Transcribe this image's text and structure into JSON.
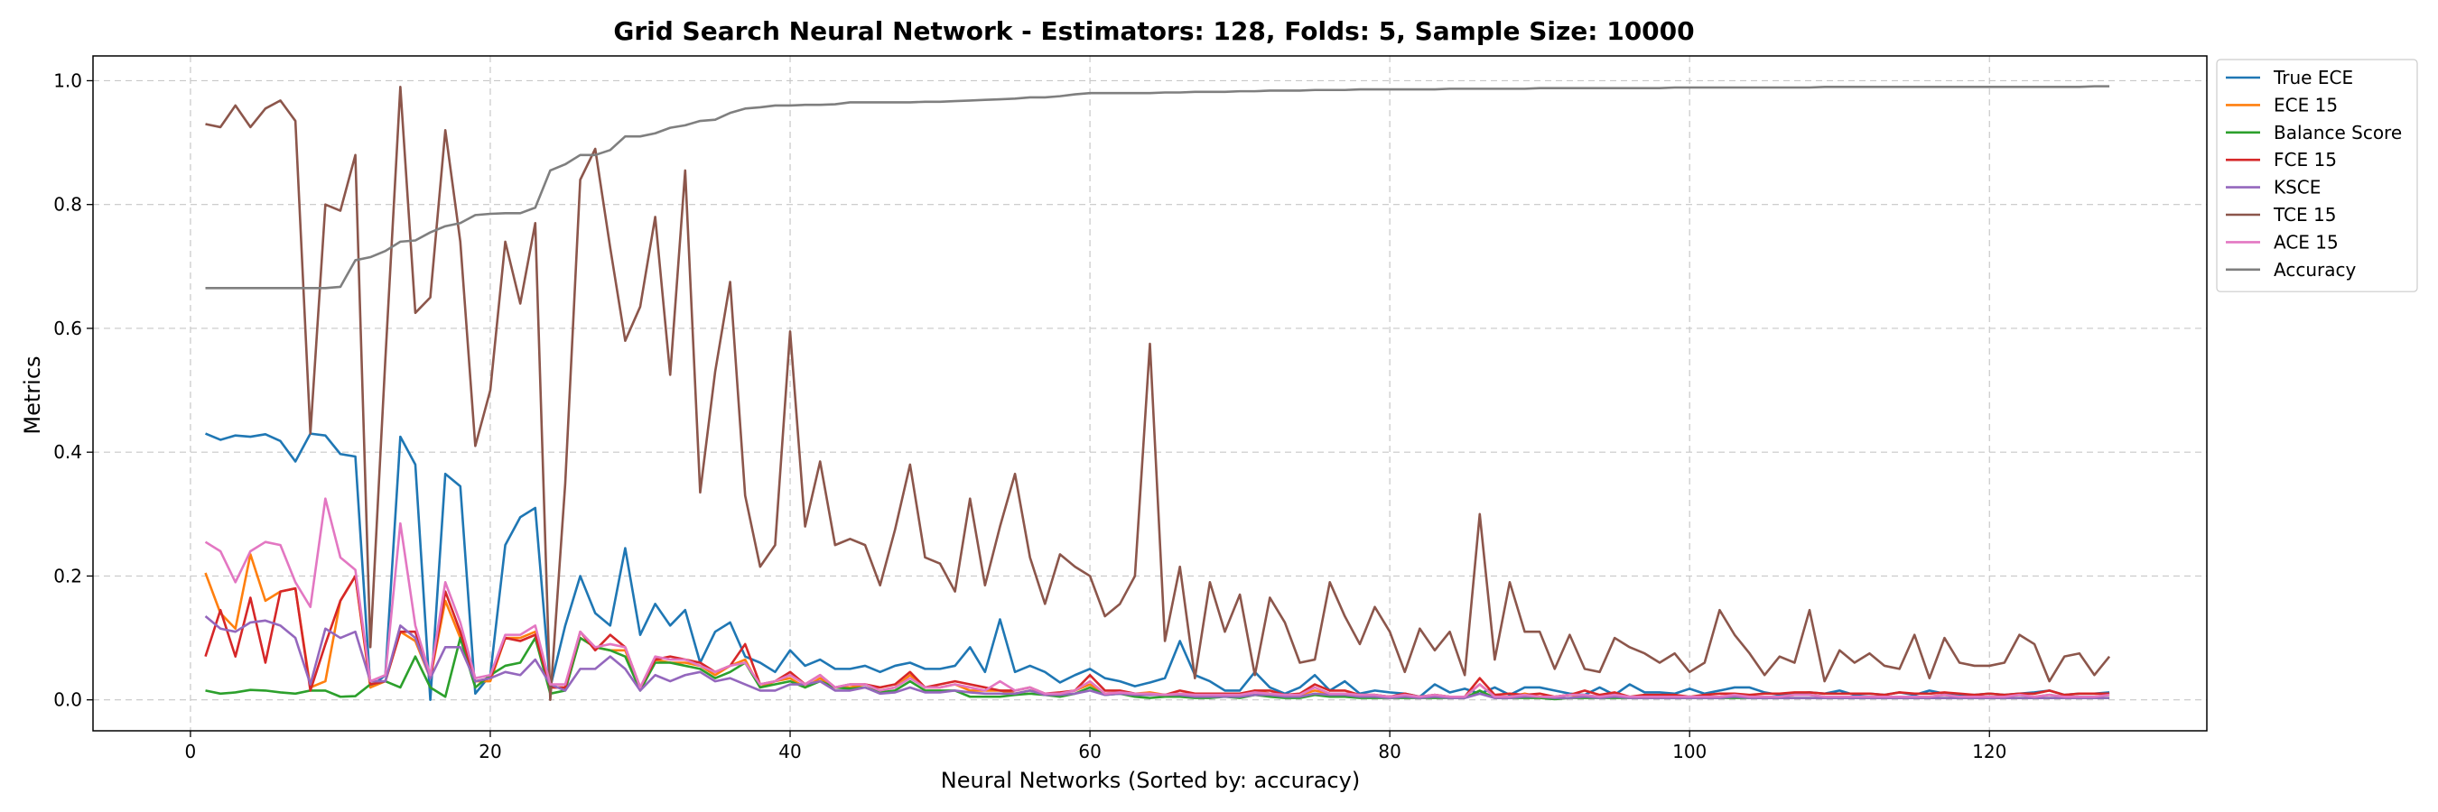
{
  "chart_data": {
    "type": "line",
    "title": "Grid Search Neural Network - Estimators: 128, Folds: 5, Sample Size: 10000",
    "xlabel": "Neural Networks (Sorted by: accuracy)",
    "ylabel": "Metrics",
    "xlim": [
      -6.5,
      134.5
    ],
    "ylim": [
      -0.05,
      1.04
    ],
    "xticks": [
      0,
      20,
      40,
      60,
      80,
      100,
      120
    ],
    "yticks": [
      0.0,
      0.2,
      0.4,
      0.6,
      0.8,
      1.0
    ],
    "xtick_labels": [
      "0",
      "20",
      "40",
      "60",
      "80",
      "100",
      "120"
    ],
    "ytick_labels": [
      "0.0",
      "0.2",
      "0.4",
      "0.6",
      "0.8",
      "1.0"
    ],
    "grid": true,
    "legend_position": "outside-top-right",
    "x": [
      1,
      2,
      3,
      4,
      5,
      6,
      7,
      8,
      9,
      10,
      11,
      12,
      13,
      14,
      15,
      16,
      17,
      18,
      19,
      20,
      21,
      22,
      23,
      24,
      25,
      26,
      27,
      28,
      29,
      30,
      31,
      32,
      33,
      34,
      35,
      36,
      37,
      38,
      39,
      40,
      41,
      42,
      43,
      44,
      45,
      46,
      47,
      48,
      49,
      50,
      51,
      52,
      53,
      54,
      55,
      56,
      57,
      58,
      59,
      60,
      61,
      62,
      63,
      64,
      65,
      66,
      67,
      68,
      69,
      70,
      71,
      72,
      73,
      74,
      75,
      76,
      77,
      78,
      79,
      80,
      81,
      82,
      83,
      84,
      85,
      86,
      87,
      88,
      89,
      90,
      91,
      92,
      93,
      94,
      95,
      96,
      97,
      98,
      99,
      100,
      101,
      102,
      103,
      104,
      105,
      106,
      107,
      108,
      109,
      110,
      111,
      112,
      113,
      114,
      115,
      116,
      117,
      118,
      119,
      120,
      121,
      122,
      123,
      124,
      125,
      126,
      127,
      128
    ],
    "series": [
      {
        "name": "True ECE",
        "color": "#1f77b4",
        "values": [
          0.43,
          0.42,
          0.427,
          0.425,
          0.429,
          0.418,
          0.385,
          0.43,
          0.427,
          0.397,
          0.393,
          0.02,
          0.04,
          0.425,
          0.38,
          0.0,
          0.365,
          0.345,
          0.01,
          0.04,
          0.25,
          0.295,
          0.31,
          0.02,
          0.12,
          0.2,
          0.14,
          0.12,
          0.245,
          0.105,
          0.155,
          0.12,
          0.145,
          0.06,
          0.11,
          0.125,
          0.07,
          0.06,
          0.045,
          0.08,
          0.055,
          0.065,
          0.05,
          0.05,
          0.055,
          0.045,
          0.055,
          0.06,
          0.05,
          0.05,
          0.055,
          0.085,
          0.045,
          0.13,
          0.045,
          0.055,
          0.045,
          0.028,
          0.04,
          0.05,
          0.035,
          0.03,
          0.022,
          0.028,
          0.035,
          0.095,
          0.04,
          0.03,
          0.015,
          0.015,
          0.045,
          0.02,
          0.01,
          0.02,
          0.04,
          0.015,
          0.03,
          0.01,
          0.015,
          0.012,
          0.01,
          0.005,
          0.025,
          0.012,
          0.018,
          0.01,
          0.02,
          0.008,
          0.02,
          0.02,
          0.015,
          0.01,
          0.008,
          0.02,
          0.008,
          0.025,
          0.012,
          0.012,
          0.01,
          0.018,
          0.01,
          0.015,
          0.02,
          0.02,
          0.012,
          0.008,
          0.01,
          0.012,
          0.01,
          0.015,
          0.008,
          0.01,
          0.008,
          0.012,
          0.008,
          0.015,
          0.01,
          0.008,
          0.008,
          0.01,
          0.008,
          0.01,
          0.012,
          0.015,
          0.008,
          0.01,
          0.01,
          0.012
        ]
      },
      {
        "name": "ECE 15",
        "color": "#ff7f0e",
        "values": [
          0.205,
          0.14,
          0.115,
          0.235,
          0.16,
          0.175,
          0.18,
          0.02,
          0.03,
          0.16,
          0.2,
          0.02,
          0.03,
          0.11,
          0.095,
          0.035,
          0.16,
          0.1,
          0.03,
          0.03,
          0.1,
          0.1,
          0.11,
          0.02,
          0.02,
          0.1,
          0.085,
          0.08,
          0.08,
          0.02,
          0.065,
          0.06,
          0.06,
          0.055,
          0.04,
          0.055,
          0.065,
          0.02,
          0.03,
          0.035,
          0.02,
          0.035,
          0.02,
          0.02,
          0.025,
          0.015,
          0.02,
          0.04,
          0.02,
          0.02,
          0.025,
          0.015,
          0.015,
          0.015,
          0.01,
          0.015,
          0.01,
          0.01,
          0.015,
          0.025,
          0.01,
          0.012,
          0.01,
          0.012,
          0.008,
          0.01,
          0.008,
          0.008,
          0.01,
          0.008,
          0.015,
          0.01,
          0.008,
          0.008,
          0.015,
          0.01,
          0.01,
          0.008,
          0.008,
          0.005,
          0.008,
          0.005,
          0.008,
          0.005,
          0.005,
          0.025,
          0.005,
          0.005,
          0.01,
          0.005,
          0.005,
          0.008,
          0.005,
          0.005,
          0.005,
          0.005,
          0.005,
          0.005,
          0.005,
          0.005,
          0.005,
          0.005,
          0.008,
          0.005,
          0.005,
          0.005,
          0.008,
          0.008,
          0.005,
          0.005,
          0.005,
          0.005,
          0.005,
          0.005,
          0.005,
          0.005,
          0.008,
          0.005,
          0.005,
          0.005,
          0.005,
          0.008,
          0.005,
          0.008,
          0.005,
          0.005,
          0.005,
          0.008
        ]
      },
      {
        "name": "Balance Score",
        "color": "#2ca02c",
        "values": [
          0.015,
          0.01,
          0.012,
          0.016,
          0.015,
          0.012,
          0.01,
          0.015,
          0.015,
          0.005,
          0.006,
          0.025,
          0.03,
          0.02,
          0.07,
          0.02,
          0.005,
          0.1,
          0.02,
          0.04,
          0.055,
          0.06,
          0.1,
          0.01,
          0.015,
          0.1,
          0.085,
          0.08,
          0.07,
          0.015,
          0.06,
          0.06,
          0.055,
          0.05,
          0.035,
          0.045,
          0.06,
          0.02,
          0.025,
          0.03,
          0.02,
          0.03,
          0.02,
          0.018,
          0.02,
          0.012,
          0.015,
          0.03,
          0.015,
          0.015,
          0.015,
          0.005,
          0.005,
          0.005,
          0.008,
          0.01,
          0.008,
          0.005,
          0.01,
          0.02,
          0.008,
          0.01,
          0.005,
          0.003,
          0.005,
          0.005,
          0.003,
          0.003,
          0.005,
          0.003,
          0.008,
          0.005,
          0.003,
          0.003,
          0.008,
          0.005,
          0.005,
          0.003,
          0.003,
          0.003,
          0.003,
          0.003,
          0.003,
          0.003,
          0.003,
          0.015,
          0.003,
          0.003,
          0.003,
          0.003,
          0.001,
          0.003,
          0.003,
          0.003,
          0.003,
          0.003,
          0.003,
          0.003,
          0.003,
          0.003,
          0.003,
          0.003,
          0.003,
          0.003,
          0.003,
          0.003,
          0.003,
          0.003,
          0.003,
          0.003,
          0.003,
          0.003,
          0.003,
          0.003,
          0.003,
          0.003,
          0.003,
          0.003,
          0.003,
          0.003,
          0.003,
          0.003,
          0.003,
          0.003,
          0.003,
          0.003,
          0.003,
          0.003
        ]
      },
      {
        "name": "FCE 15",
        "color": "#d62728",
        "values": [
          0.07,
          0.145,
          0.07,
          0.165,
          0.06,
          0.175,
          0.18,
          0.015,
          0.09,
          0.16,
          0.2,
          0.025,
          0.03,
          0.11,
          0.11,
          0.035,
          0.175,
          0.11,
          0.03,
          0.035,
          0.1,
          0.095,
          0.105,
          0.02,
          0.02,
          0.11,
          0.08,
          0.105,
          0.085,
          0.02,
          0.065,
          0.07,
          0.065,
          0.06,
          0.045,
          0.055,
          0.09,
          0.025,
          0.03,
          0.045,
          0.025,
          0.04,
          0.02,
          0.025,
          0.025,
          0.02,
          0.025,
          0.045,
          0.02,
          0.025,
          0.03,
          0.025,
          0.02,
          0.015,
          0.015,
          0.02,
          0.01,
          0.012,
          0.015,
          0.04,
          0.015,
          0.015,
          0.01,
          0.01,
          0.008,
          0.015,
          0.01,
          0.01,
          0.01,
          0.01,
          0.015,
          0.015,
          0.008,
          0.01,
          0.025,
          0.015,
          0.015,
          0.008,
          0.008,
          0.005,
          0.01,
          0.005,
          0.008,
          0.005,
          0.005,
          0.035,
          0.008,
          0.01,
          0.008,
          0.01,
          0.005,
          0.008,
          0.015,
          0.008,
          0.012,
          0.005,
          0.008,
          0.008,
          0.008,
          0.005,
          0.008,
          0.01,
          0.01,
          0.008,
          0.01,
          0.01,
          0.012,
          0.012,
          0.01,
          0.01,
          0.01,
          0.01,
          0.008,
          0.012,
          0.01,
          0.01,
          0.012,
          0.01,
          0.008,
          0.01,
          0.008,
          0.01,
          0.01,
          0.015,
          0.008,
          0.01,
          0.01,
          0.01
        ]
      },
      {
        "name": "KSCE",
        "color": "#9467bd",
        "values": [
          0.135,
          0.115,
          0.11,
          0.125,
          0.128,
          0.12,
          0.1,
          0.025,
          0.115,
          0.1,
          0.11,
          0.03,
          0.03,
          0.12,
          0.1,
          0.035,
          0.085,
          0.085,
          0.03,
          0.035,
          0.045,
          0.04,
          0.065,
          0.025,
          0.015,
          0.05,
          0.05,
          0.07,
          0.05,
          0.015,
          0.04,
          0.03,
          0.04,
          0.045,
          0.03,
          0.035,
          0.025,
          0.015,
          0.015,
          0.025,
          0.025,
          0.03,
          0.015,
          0.015,
          0.02,
          0.01,
          0.012,
          0.02,
          0.012,
          0.012,
          0.015,
          0.012,
          0.01,
          0.01,
          0.01,
          0.015,
          0.008,
          0.008,
          0.01,
          0.015,
          0.008,
          0.01,
          0.008,
          0.008,
          0.008,
          0.008,
          0.005,
          0.005,
          0.005,
          0.005,
          0.008,
          0.008,
          0.005,
          0.005,
          0.01,
          0.008,
          0.008,
          0.005,
          0.005,
          0.003,
          0.005,
          0.003,
          0.005,
          0.003,
          0.003,
          0.01,
          0.003,
          0.003,
          0.005,
          0.005,
          0.003,
          0.003,
          0.005,
          0.003,
          0.005,
          0.003,
          0.003,
          0.003,
          0.003,
          0.003,
          0.003,
          0.003,
          0.005,
          0.003,
          0.003,
          0.003,
          0.003,
          0.003,
          0.003,
          0.003,
          0.003,
          0.003,
          0.003,
          0.003,
          0.003,
          0.003,
          0.003,
          0.003,
          0.003,
          0.003,
          0.003,
          0.003,
          0.003,
          0.003,
          0.003,
          0.003,
          0.003,
          0.003
        ]
      },
      {
        "name": "TCE 15",
        "color": "#8c564b",
        "values": [
          0.93,
          0.925,
          0.96,
          0.925,
          0.955,
          0.968,
          0.935,
          0.43,
          0.8,
          0.79,
          0.88,
          0.085,
          0.55,
          0.99,
          0.625,
          0.65,
          0.92,
          0.74,
          0.41,
          0.5,
          0.74,
          0.64,
          0.77,
          0.0,
          0.35,
          0.84,
          0.89,
          0.73,
          0.58,
          0.635,
          0.78,
          0.525,
          0.855,
          0.335,
          0.53,
          0.675,
          0.33,
          0.215,
          0.25,
          0.595,
          0.28,
          0.385,
          0.25,
          0.26,
          0.25,
          0.185,
          0.275,
          0.38,
          0.23,
          0.22,
          0.175,
          0.325,
          0.185,
          0.28,
          0.365,
          0.23,
          0.155,
          0.235,
          0.215,
          0.2,
          0.135,
          0.155,
          0.2,
          0.575,
          0.095,
          0.215,
          0.035,
          0.19,
          0.11,
          0.17,
          0.04,
          0.165,
          0.125,
          0.06,
          0.065,
          0.19,
          0.135,
          0.09,
          0.15,
          0.11,
          0.045,
          0.115,
          0.08,
          0.11,
          0.04,
          0.3,
          0.065,
          0.19,
          0.11,
          0.11,
          0.05,
          0.105,
          0.05,
          0.045,
          0.1,
          0.085,
          0.075,
          0.06,
          0.075,
          0.045,
          0.06,
          0.145,
          0.105,
          0.075,
          0.04,
          0.07,
          0.06,
          0.145,
          0.03,
          0.08,
          0.06,
          0.075,
          0.055,
          0.05,
          0.105,
          0.035,
          0.1,
          0.06,
          0.055,
          0.055,
          0.06,
          0.105,
          0.09,
          0.03,
          0.07,
          0.075,
          0.04,
          0.07
        ]
      },
      {
        "name": "ACE 15",
        "color": "#e377c2",
        "values": [
          0.255,
          0.24,
          0.19,
          0.24,
          0.255,
          0.25,
          0.19,
          0.15,
          0.325,
          0.23,
          0.21,
          0.03,
          0.04,
          0.285,
          0.12,
          0.04,
          0.19,
          0.125,
          0.035,
          0.04,
          0.105,
          0.105,
          0.12,
          0.025,
          0.025,
          0.11,
          0.085,
          0.09,
          0.085,
          0.02,
          0.07,
          0.065,
          0.065,
          0.055,
          0.045,
          0.055,
          0.06,
          0.025,
          0.03,
          0.04,
          0.025,
          0.04,
          0.02,
          0.025,
          0.025,
          0.015,
          0.02,
          0.035,
          0.02,
          0.02,
          0.025,
          0.02,
          0.015,
          0.03,
          0.015,
          0.02,
          0.01,
          0.01,
          0.015,
          0.03,
          0.01,
          0.012,
          0.01,
          0.01,
          0.008,
          0.01,
          0.008,
          0.008,
          0.008,
          0.008,
          0.012,
          0.01,
          0.008,
          0.008,
          0.02,
          0.01,
          0.01,
          0.008,
          0.008,
          0.005,
          0.008,
          0.005,
          0.008,
          0.005,
          0.005,
          0.025,
          0.005,
          0.005,
          0.008,
          0.005,
          0.005,
          0.008,
          0.008,
          0.005,
          0.008,
          0.005,
          0.005,
          0.005,
          0.005,
          0.005,
          0.005,
          0.005,
          0.008,
          0.005,
          0.005,
          0.005,
          0.008,
          0.008,
          0.005,
          0.005,
          0.005,
          0.005,
          0.005,
          0.005,
          0.005,
          0.005,
          0.008,
          0.005,
          0.005,
          0.005,
          0.005,
          0.008,
          0.005,
          0.008,
          0.005,
          0.005,
          0.005,
          0.008
        ]
      },
      {
        "name": "Accuracy",
        "color": "#7f7f7f",
        "values": [
          0.665,
          0.665,
          0.665,
          0.665,
          0.665,
          0.665,
          0.665,
          0.665,
          0.665,
          0.667,
          0.71,
          0.715,
          0.725,
          0.74,
          0.742,
          0.755,
          0.765,
          0.77,
          0.783,
          0.785,
          0.786,
          0.786,
          0.795,
          0.855,
          0.865,
          0.88,
          0.88,
          0.888,
          0.91,
          0.91,
          0.915,
          0.924,
          0.928,
          0.935,
          0.937,
          0.948,
          0.955,
          0.957,
          0.96,
          0.96,
          0.961,
          0.961,
          0.962,
          0.965,
          0.965,
          0.965,
          0.965,
          0.965,
          0.966,
          0.966,
          0.967,
          0.968,
          0.969,
          0.97,
          0.971,
          0.973,
          0.973,
          0.975,
          0.978,
          0.98,
          0.98,
          0.98,
          0.98,
          0.98,
          0.981,
          0.981,
          0.982,
          0.982,
          0.982,
          0.983,
          0.983,
          0.984,
          0.984,
          0.984,
          0.985,
          0.985,
          0.985,
          0.986,
          0.986,
          0.986,
          0.986,
          0.986,
          0.986,
          0.987,
          0.987,
          0.987,
          0.987,
          0.987,
          0.987,
          0.988,
          0.988,
          0.988,
          0.988,
          0.988,
          0.988,
          0.988,
          0.988,
          0.988,
          0.989,
          0.989,
          0.989,
          0.989,
          0.989,
          0.989,
          0.989,
          0.989,
          0.989,
          0.989,
          0.99,
          0.99,
          0.99,
          0.99,
          0.99,
          0.99,
          0.99,
          0.99,
          0.99,
          0.99,
          0.99,
          0.99,
          0.99,
          0.99,
          0.99,
          0.99,
          0.99,
          0.99,
          0.991,
          0.991
        ]
      }
    ]
  }
}
